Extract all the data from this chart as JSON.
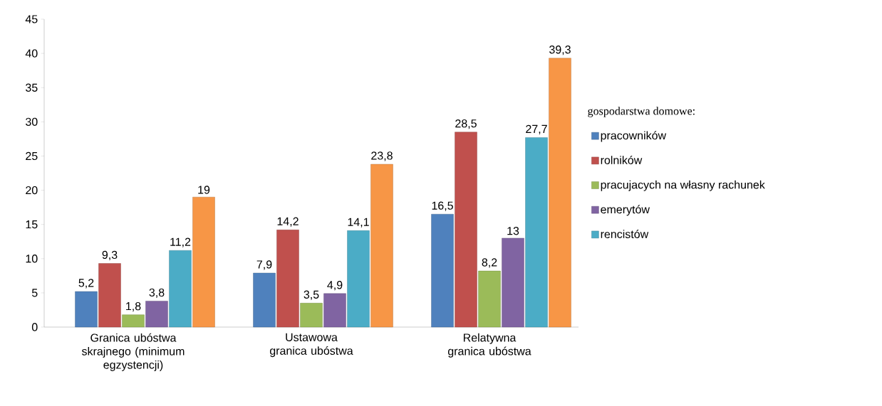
{
  "chart_data": {
    "type": "bar",
    "legend_title": "gospodarstwa domowe:",
    "categories": [
      "Granica ubóstwa skrajnego (minimum egzystencji)",
      "Ustawowa granica ubóstwa",
      "Relatywna granica ubóstwa"
    ],
    "series": [
      {
        "name": "pracowników",
        "color": "#4f81bd",
        "values": [
          5.2,
          7.9,
          16.5
        ],
        "value_labels": [
          "5,2",
          "7,9",
          "16,5"
        ]
      },
      {
        "name": "rolników",
        "color": "#c0504d",
        "values": [
          9.3,
          14.2,
          28.5
        ],
        "value_labels": [
          "9,3",
          "14,2",
          "28,5"
        ]
      },
      {
        "name": "pracujacych na własny rachunek",
        "color": "#9bbb59",
        "values": [
          1.8,
          3.5,
          8.2
        ],
        "value_labels": [
          "1,8",
          "3,5",
          "8,2"
        ]
      },
      {
        "name": "emerytów",
        "color": "#8064a2",
        "values": [
          3.8,
          4.9,
          13
        ],
        "value_labels": [
          "3,8",
          "4,9",
          "13"
        ]
      },
      {
        "name": "rencistów",
        "color": "#4bacc6",
        "values": [
          11.2,
          14.1,
          27.7
        ],
        "value_labels": [
          "11,2",
          "14,1",
          "27,7"
        ]
      },
      {
        "color": "#f79646",
        "values": [
          19,
          23.8,
          39.3
        ],
        "value_labels": [
          "19",
          "23,8",
          "39,3"
        ]
      }
    ],
    "ylim": [
      0,
      45
    ],
    "yticks": [
      0,
      5,
      10,
      15,
      20,
      25,
      30,
      35,
      40,
      45
    ],
    "grid": false,
    "legend": "right"
  }
}
